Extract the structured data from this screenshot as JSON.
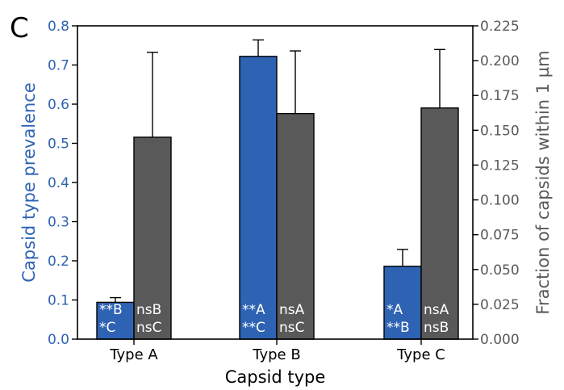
{
  "panel_label": "C",
  "chart_data": {
    "type": "bar",
    "categories": [
      "Type A",
      "Type B",
      "Type C"
    ],
    "xlabel": "Capsid type",
    "ylabel_left": "Capsid type prevalence",
    "ylabel_right": "Fraction of capsids within 1 µm",
    "ylim_left": [
      0,
      0.8
    ],
    "ylim_right": [
      0,
      0.225
    ],
    "yticks_left": [
      "0.0",
      "0.1",
      "0.2",
      "0.3",
      "0.4",
      "0.5",
      "0.6",
      "0.7",
      "0.8"
    ],
    "yticks_right": [
      "0.000",
      "0.025",
      "0.050",
      "0.075",
      "0.100",
      "0.125",
      "0.150",
      "0.175",
      "0.200",
      "0.225"
    ],
    "grid": false,
    "series": [
      {
        "axis": "left",
        "color": "#2e63b3",
        "values": [
          0.094,
          0.722,
          0.186
        ],
        "error_upper": [
          0.106,
          0.764,
          0.229
        ],
        "labels": [
          [
            "**B",
            "*C"
          ],
          [
            "**A",
            "**C"
          ],
          [
            "*A",
            "**B"
          ]
        ]
      },
      {
        "axis": "right",
        "color": "#595959",
        "values": [
          0.145,
          0.162,
          0.166
        ],
        "error_upper": [
          0.206,
          0.207,
          0.208
        ],
        "labels": [
          [
            "nsB",
            "nsC"
          ],
          [
            "nsA",
            "nsC"
          ],
          [
            "nsA",
            "nsB"
          ]
        ]
      }
    ]
  }
}
